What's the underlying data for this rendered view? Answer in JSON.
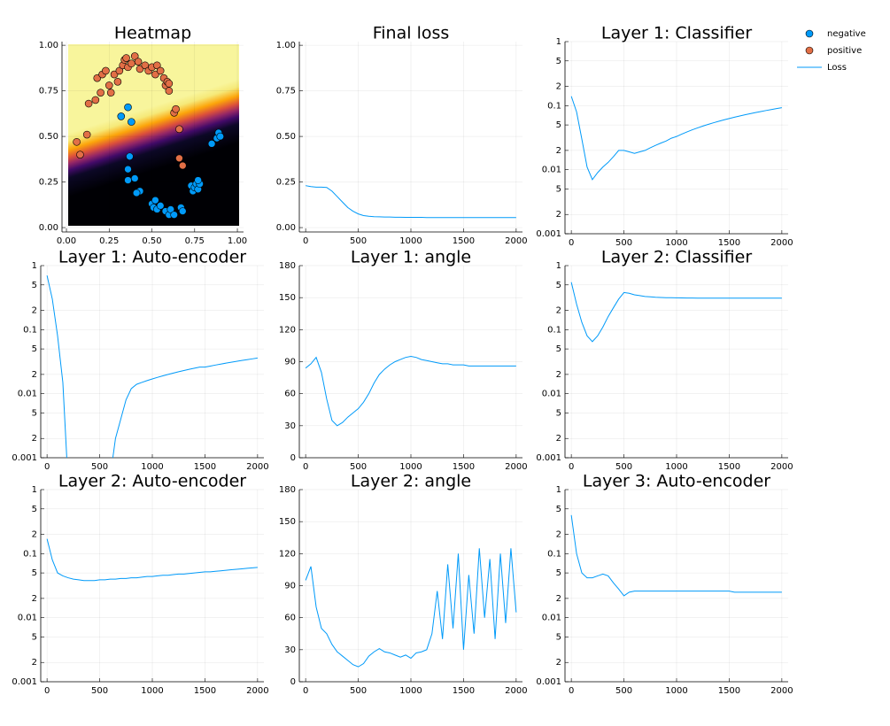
{
  "chart_data": [
    {
      "type": "scatter",
      "title": "Heatmap",
      "xlim": [
        -0.026,
        1.036
      ],
      "ylim": [
        -0.024,
        1.02
      ],
      "xticks": [
        {
          "value": 0,
          "label": "0.00"
        },
        {
          "value": 0.25,
          "label": "0.25"
        },
        {
          "value": 0.5,
          "label": "0.50"
        },
        {
          "value": 0.75,
          "label": "0.75"
        },
        {
          "value": 1,
          "label": "1.00"
        }
      ],
      "yticks": [
        {
          "value": 0,
          "label": "0.00"
        },
        {
          "value": 0.25,
          "label": "0.25"
        },
        {
          "value": 0.5,
          "label": "0.50"
        },
        {
          "value": 0.75,
          "label": "0.75"
        },
        {
          "value": 1,
          "label": "1.00"
        }
      ],
      "grid": true,
      "series": [
        {
          "name": "negative",
          "color": "#009af9",
          "x": [
            0.32,
            0.36,
            0.38,
            0.37,
            0.36,
            0.4,
            0.36,
            0.43,
            0.41,
            0.5,
            0.51,
            0.52,
            0.53,
            0.55,
            0.58,
            0.6,
            0.61,
            0.63,
            0.67,
            0.68,
            0.73,
            0.74,
            0.75,
            0.76,
            0.77,
            0.78,
            0.85,
            0.88,
            0.89,
            0.9,
            0.77
          ],
          "y": [
            0.61,
            0.66,
            0.58,
            0.39,
            0.32,
            0.27,
            0.26,
            0.2,
            0.19,
            0.13,
            0.11,
            0.15,
            0.1,
            0.12,
            0.09,
            0.07,
            0.1,
            0.07,
            0.11,
            0.09,
            0.23,
            0.2,
            0.22,
            0.24,
            0.21,
            0.24,
            0.46,
            0.49,
            0.52,
            0.5,
            0.26
          ]
        },
        {
          "name": "positive",
          "color": "#e26f46",
          "x": [
            0.06,
            0.08,
            0.12,
            0.13,
            0.17,
            0.18,
            0.2,
            0.21,
            0.23,
            0.25,
            0.26,
            0.28,
            0.3,
            0.31,
            0.33,
            0.34,
            0.35,
            0.36,
            0.38,
            0.4,
            0.42,
            0.43,
            0.46,
            0.48,
            0.5,
            0.52,
            0.53,
            0.55,
            0.57,
            0.58,
            0.59,
            0.6,
            0.6,
            0.63,
            0.64,
            0.66,
            0.66,
            0.68
          ],
          "y": [
            0.47,
            0.4,
            0.51,
            0.68,
            0.7,
            0.82,
            0.74,
            0.84,
            0.86,
            0.78,
            0.74,
            0.84,
            0.8,
            0.86,
            0.89,
            0.92,
            0.93,
            0.88,
            0.9,
            0.94,
            0.91,
            0.87,
            0.89,
            0.86,
            0.88,
            0.84,
            0.89,
            0.86,
            0.82,
            0.78,
            0.8,
            0.75,
            0.79,
            0.63,
            0.65,
            0.54,
            0.38,
            0.34
          ]
        }
      ]
    },
    {
      "type": "line",
      "title": "Final loss",
      "xlim": [
        -60,
        2060
      ],
      "ylim": [
        -0.024,
        1.02
      ],
      "xticks": [
        0,
        500,
        1000,
        1500,
        2000
      ],
      "yticks": [
        {
          "value": 0,
          "label": "0.00"
        },
        {
          "value": 0.25,
          "label": "0.25"
        },
        {
          "value": 0.5,
          "label": "0.50"
        },
        {
          "value": 0.75,
          "label": "0.75"
        },
        {
          "value": 1,
          "label": "1.00"
        }
      ],
      "grid": true,
      "x": [
        0,
        50,
        100,
        150,
        200,
        250,
        300,
        350,
        400,
        450,
        500,
        550,
        600,
        650,
        700,
        750,
        800,
        850,
        900,
        950,
        1000,
        1050,
        1100,
        1150,
        1200,
        1250,
        1300,
        1350,
        1400,
        1450,
        1500,
        1550,
        1600,
        1650,
        1700,
        1750,
        1800,
        1850,
        1900,
        1950,
        2000
      ],
      "series": [
        {
          "name": "Loss",
          "color": "#009af9",
          "values": [
            0.23,
            0.225,
            0.222,
            0.222,
            0.22,
            0.2,
            0.17,
            0.14,
            0.11,
            0.09,
            0.075,
            0.066,
            0.062,
            0.06,
            0.059,
            0.058,
            0.058,
            0.057,
            0.057,
            0.056,
            0.056,
            0.056,
            0.056,
            0.055,
            0.055,
            0.055,
            0.055,
            0.055,
            0.055,
            0.055,
            0.055,
            0.055,
            0.055,
            0.055,
            0.055,
            0.055,
            0.055,
            0.055,
            0.055,
            0.055,
            0.055
          ]
        }
      ]
    },
    {
      "type": "line",
      "title": "Layer 1: Classifier",
      "xlim": [
        -60,
        2060
      ],
      "ylim": [
        0.001,
        1
      ],
      "yscale": "log",
      "xticks": [
        0,
        500,
        1000,
        1500,
        2000
      ],
      "yticks": [
        1,
        {
          "value": 0.5,
          "label": "5"
        },
        {
          "value": 0.2,
          "label": "2"
        },
        0.1,
        {
          "value": 0.05,
          "label": "5"
        },
        {
          "value": 0.02,
          "label": "2"
        },
        0.01,
        {
          "value": 0.005,
          "label": "5"
        },
        {
          "value": 0.002,
          "label": "2"
        },
        0.001
      ],
      "grid": true,
      "color": "#009af9",
      "x": [
        0,
        50,
        100,
        150,
        200,
        250,
        300,
        350,
        400,
        450,
        500,
        550,
        600,
        650,
        700,
        750,
        800,
        850,
        900,
        950,
        1000,
        1050,
        1100,
        1150,
        1200,
        1250,
        1300,
        1350,
        1400,
        1450,
        1500,
        1550,
        1600,
        1650,
        1700,
        1750,
        1800,
        1850,
        1900,
        1950,
        2000
      ],
      "values": [
        0.14,
        0.08,
        0.03,
        0.011,
        0.007,
        0.009,
        0.011,
        0.013,
        0.016,
        0.02,
        0.02,
        0.019,
        0.018,
        0.019,
        0.02,
        0.022,
        0.024,
        0.026,
        0.028,
        0.031,
        0.033,
        0.036,
        0.039,
        0.042,
        0.045,
        0.048,
        0.051,
        0.054,
        0.057,
        0.06,
        0.063,
        0.066,
        0.069,
        0.072,
        0.075,
        0.078,
        0.081,
        0.084,
        0.087,
        0.09,
        0.093
      ]
    },
    {
      "type": "line",
      "title": "Layer 1: Auto-encoder",
      "xlim": [
        -60,
        2060
      ],
      "ylim": [
        0.001,
        1
      ],
      "yscale": "log",
      "xticks": [
        0,
        500,
        1000,
        1500,
        2000
      ],
      "yticks": [
        1,
        {
          "value": 0.5,
          "label": "5"
        },
        {
          "value": 0.2,
          "label": "2"
        },
        0.1,
        {
          "value": 0.05,
          "label": "5"
        },
        {
          "value": 0.02,
          "label": "2"
        },
        0.01,
        {
          "value": 0.005,
          "label": "5"
        },
        {
          "value": 0.002,
          "label": "2"
        },
        0.001
      ],
      "grid": true,
      "color": "#009af9",
      "x": [
        0,
        50,
        100,
        150,
        200,
        250,
        300,
        350,
        400,
        450,
        500,
        550,
        600,
        650,
        700,
        750,
        800,
        850,
        900,
        950,
        1000,
        1050,
        1100,
        1150,
        1200,
        1250,
        1300,
        1350,
        1400,
        1450,
        1500,
        1550,
        1600,
        1650,
        1700,
        1750,
        1800,
        1850,
        1900,
        1950,
        2000
      ],
      "values": [
        0.7,
        0.3,
        0.08,
        0.015,
        0.0004,
        null,
        null,
        null,
        null,
        null,
        null,
        null,
        0.0005,
        0.002,
        0.004,
        0.008,
        0.012,
        0.014,
        0.015,
        0.016,
        0.017,
        0.018,
        0.019,
        0.02,
        0.021,
        0.022,
        0.023,
        0.024,
        0.025,
        0.026,
        0.026,
        0.027,
        0.028,
        0.029,
        0.03,
        0.031,
        0.032,
        0.033,
        0.034,
        0.035,
        0.036
      ]
    },
    {
      "type": "line",
      "title": "Layer 1: angle",
      "xlim": [
        -60,
        2060
      ],
      "ylim": [
        0,
        180
      ],
      "xticks": [
        0,
        500,
        1000,
        1500,
        2000
      ],
      "yticks": [
        0,
        30,
        60,
        90,
        120,
        150,
        180
      ],
      "grid": true,
      "color": "#009af9",
      "x": [
        0,
        50,
        100,
        150,
        200,
        250,
        300,
        350,
        400,
        450,
        500,
        550,
        600,
        650,
        700,
        750,
        800,
        850,
        900,
        950,
        1000,
        1050,
        1100,
        1150,
        1200,
        1250,
        1300,
        1350,
        1400,
        1450,
        1500,
        1550,
        1600,
        1650,
        1700,
        1750,
        1800,
        1850,
        1900,
        1950,
        2000
      ],
      "values": [
        84,
        88,
        94,
        80,
        55,
        35,
        30,
        33,
        38,
        42,
        46,
        52,
        60,
        70,
        78,
        83,
        87,
        90,
        92,
        94,
        95,
        94,
        92,
        91,
        90,
        89,
        88,
        88,
        87,
        87,
        87,
        86,
        86,
        86,
        86,
        86,
        86,
        86,
        86,
        86,
        86
      ]
    },
    {
      "type": "line",
      "title": "Layer 2: Classifier",
      "xlim": [
        -60,
        2060
      ],
      "ylim": [
        0.001,
        1
      ],
      "yscale": "log",
      "xticks": [
        0,
        500,
        1000,
        1500,
        2000
      ],
      "yticks": [
        1,
        {
          "value": 0.5,
          "label": "5"
        },
        {
          "value": 0.2,
          "label": "2"
        },
        0.1,
        {
          "value": 0.05,
          "label": "5"
        },
        {
          "value": 0.02,
          "label": "2"
        },
        0.01,
        {
          "value": 0.005,
          "label": "5"
        },
        {
          "value": 0.002,
          "label": "2"
        },
        0.001
      ],
      "grid": true,
      "color": "#009af9",
      "x": [
        0,
        50,
        100,
        150,
        200,
        250,
        300,
        350,
        400,
        450,
        500,
        550,
        600,
        650,
        700,
        750,
        800,
        850,
        900,
        950,
        1000,
        1050,
        1100,
        1150,
        1200,
        1250,
        1300,
        1350,
        1400,
        1450,
        1500,
        1550,
        1600,
        1650,
        1700,
        1750,
        1800,
        1850,
        1900,
        1950,
        2000
      ],
      "values": [
        0.55,
        0.25,
        0.13,
        0.08,
        0.065,
        0.08,
        0.11,
        0.16,
        0.22,
        0.3,
        0.38,
        0.37,
        0.35,
        0.34,
        0.33,
        0.325,
        0.32,
        0.318,
        0.316,
        0.315,
        0.314,
        0.313,
        0.312,
        0.312,
        0.311,
        0.311,
        0.31,
        0.31,
        0.31,
        0.31,
        0.31,
        0.31,
        0.31,
        0.31,
        0.31,
        0.31,
        0.31,
        0.31,
        0.31,
        0.31,
        0.31
      ]
    },
    {
      "type": "line",
      "title": "Layer 2: Auto-encoder",
      "xlim": [
        -60,
        2060
      ],
      "ylim": [
        0.001,
        1
      ],
      "yscale": "log",
      "xticks": [
        0,
        500,
        1000,
        1500,
        2000
      ],
      "yticks": [
        1,
        {
          "value": 0.5,
          "label": "5"
        },
        {
          "value": 0.2,
          "label": "2"
        },
        0.1,
        {
          "value": 0.05,
          "label": "5"
        },
        {
          "value": 0.02,
          "label": "2"
        },
        0.01,
        {
          "value": 0.005,
          "label": "5"
        },
        {
          "value": 0.002,
          "label": "2"
        },
        0.001
      ],
      "grid": true,
      "color": "#009af9",
      "x": [
        0,
        50,
        100,
        150,
        200,
        250,
        300,
        350,
        400,
        450,
        500,
        550,
        600,
        650,
        700,
        750,
        800,
        850,
        900,
        950,
        1000,
        1050,
        1100,
        1150,
        1200,
        1250,
        1300,
        1350,
        1400,
        1450,
        1500,
        1550,
        1600,
        1650,
        1700,
        1750,
        1800,
        1850,
        1900,
        1950,
        2000
      ],
      "values": [
        0.17,
        0.08,
        0.05,
        0.045,
        0.042,
        0.04,
        0.039,
        0.038,
        0.038,
        0.038,
        0.039,
        0.039,
        0.04,
        0.04,
        0.041,
        0.041,
        0.042,
        0.042,
        0.043,
        0.044,
        0.044,
        0.045,
        0.046,
        0.046,
        0.047,
        0.048,
        0.048,
        0.049,
        0.05,
        0.051,
        0.052,
        0.052,
        0.053,
        0.054,
        0.055,
        0.056,
        0.057,
        0.058,
        0.059,
        0.06,
        0.061
      ]
    },
    {
      "type": "line",
      "title": "Layer 2: angle",
      "xlim": [
        -60,
        2060
      ],
      "ylim": [
        0,
        180
      ],
      "xticks": [
        0,
        500,
        1000,
        1500,
        2000
      ],
      "yticks": [
        0,
        30,
        60,
        90,
        120,
        150,
        180
      ],
      "grid": true,
      "color": "#009af9",
      "x": [
        0,
        50,
        100,
        150,
        200,
        250,
        300,
        350,
        400,
        450,
        500,
        550,
        600,
        650,
        700,
        750,
        800,
        850,
        900,
        950,
        1000,
        1050,
        1100,
        1150,
        1200,
        1250,
        1300,
        1350,
        1400,
        1450,
        1500,
        1550,
        1600,
        1650,
        1700,
        1750,
        1800,
        1850,
        1900,
        1950,
        2000
      ],
      "values": [
        95,
        108,
        70,
        50,
        45,
        35,
        28,
        24,
        20,
        16,
        14,
        17,
        24,
        28,
        31,
        28,
        27,
        25,
        23,
        25,
        22,
        27,
        28,
        30,
        45,
        85,
        40,
        110,
        50,
        120,
        30,
        100,
        45,
        125,
        60,
        115,
        40,
        120,
        55,
        125,
        65
      ]
    },
    {
      "type": "line",
      "title": "Layer 3: Auto-encoder",
      "xlim": [
        -60,
        2060
      ],
      "ylim": [
        0.001,
        1
      ],
      "yscale": "log",
      "xticks": [
        0,
        500,
        1000,
        1500,
        2000
      ],
      "yticks": [
        1,
        {
          "value": 0.5,
          "label": "5"
        },
        {
          "value": 0.2,
          "label": "2"
        },
        0.1,
        {
          "value": 0.05,
          "label": "5"
        },
        {
          "value": 0.02,
          "label": "2"
        },
        0.01,
        {
          "value": 0.005,
          "label": "5"
        },
        {
          "value": 0.002,
          "label": "2"
        },
        0.001
      ],
      "grid": true,
      "color": "#009af9",
      "x": [
        0,
        50,
        100,
        150,
        200,
        250,
        300,
        350,
        400,
        450,
        500,
        550,
        600,
        650,
        700,
        750,
        800,
        850,
        900,
        950,
        1000,
        1050,
        1100,
        1150,
        1200,
        1250,
        1300,
        1350,
        1400,
        1450,
        1500,
        1550,
        1600,
        1650,
        1700,
        1750,
        1800,
        1850,
        1900,
        1950,
        2000
      ],
      "values": [
        0.4,
        0.1,
        0.05,
        0.042,
        0.042,
        0.045,
        0.048,
        0.045,
        0.035,
        0.028,
        0.022,
        0.025,
        0.026,
        0.026,
        0.026,
        0.026,
        0.026,
        0.026,
        0.026,
        0.026,
        0.026,
        0.026,
        0.026,
        0.026,
        0.026,
        0.026,
        0.026,
        0.026,
        0.026,
        0.026,
        0.026,
        0.025,
        0.025,
        0.025,
        0.025,
        0.025,
        0.025,
        0.025,
        0.025,
        0.025,
        0.025
      ]
    }
  ]
}
